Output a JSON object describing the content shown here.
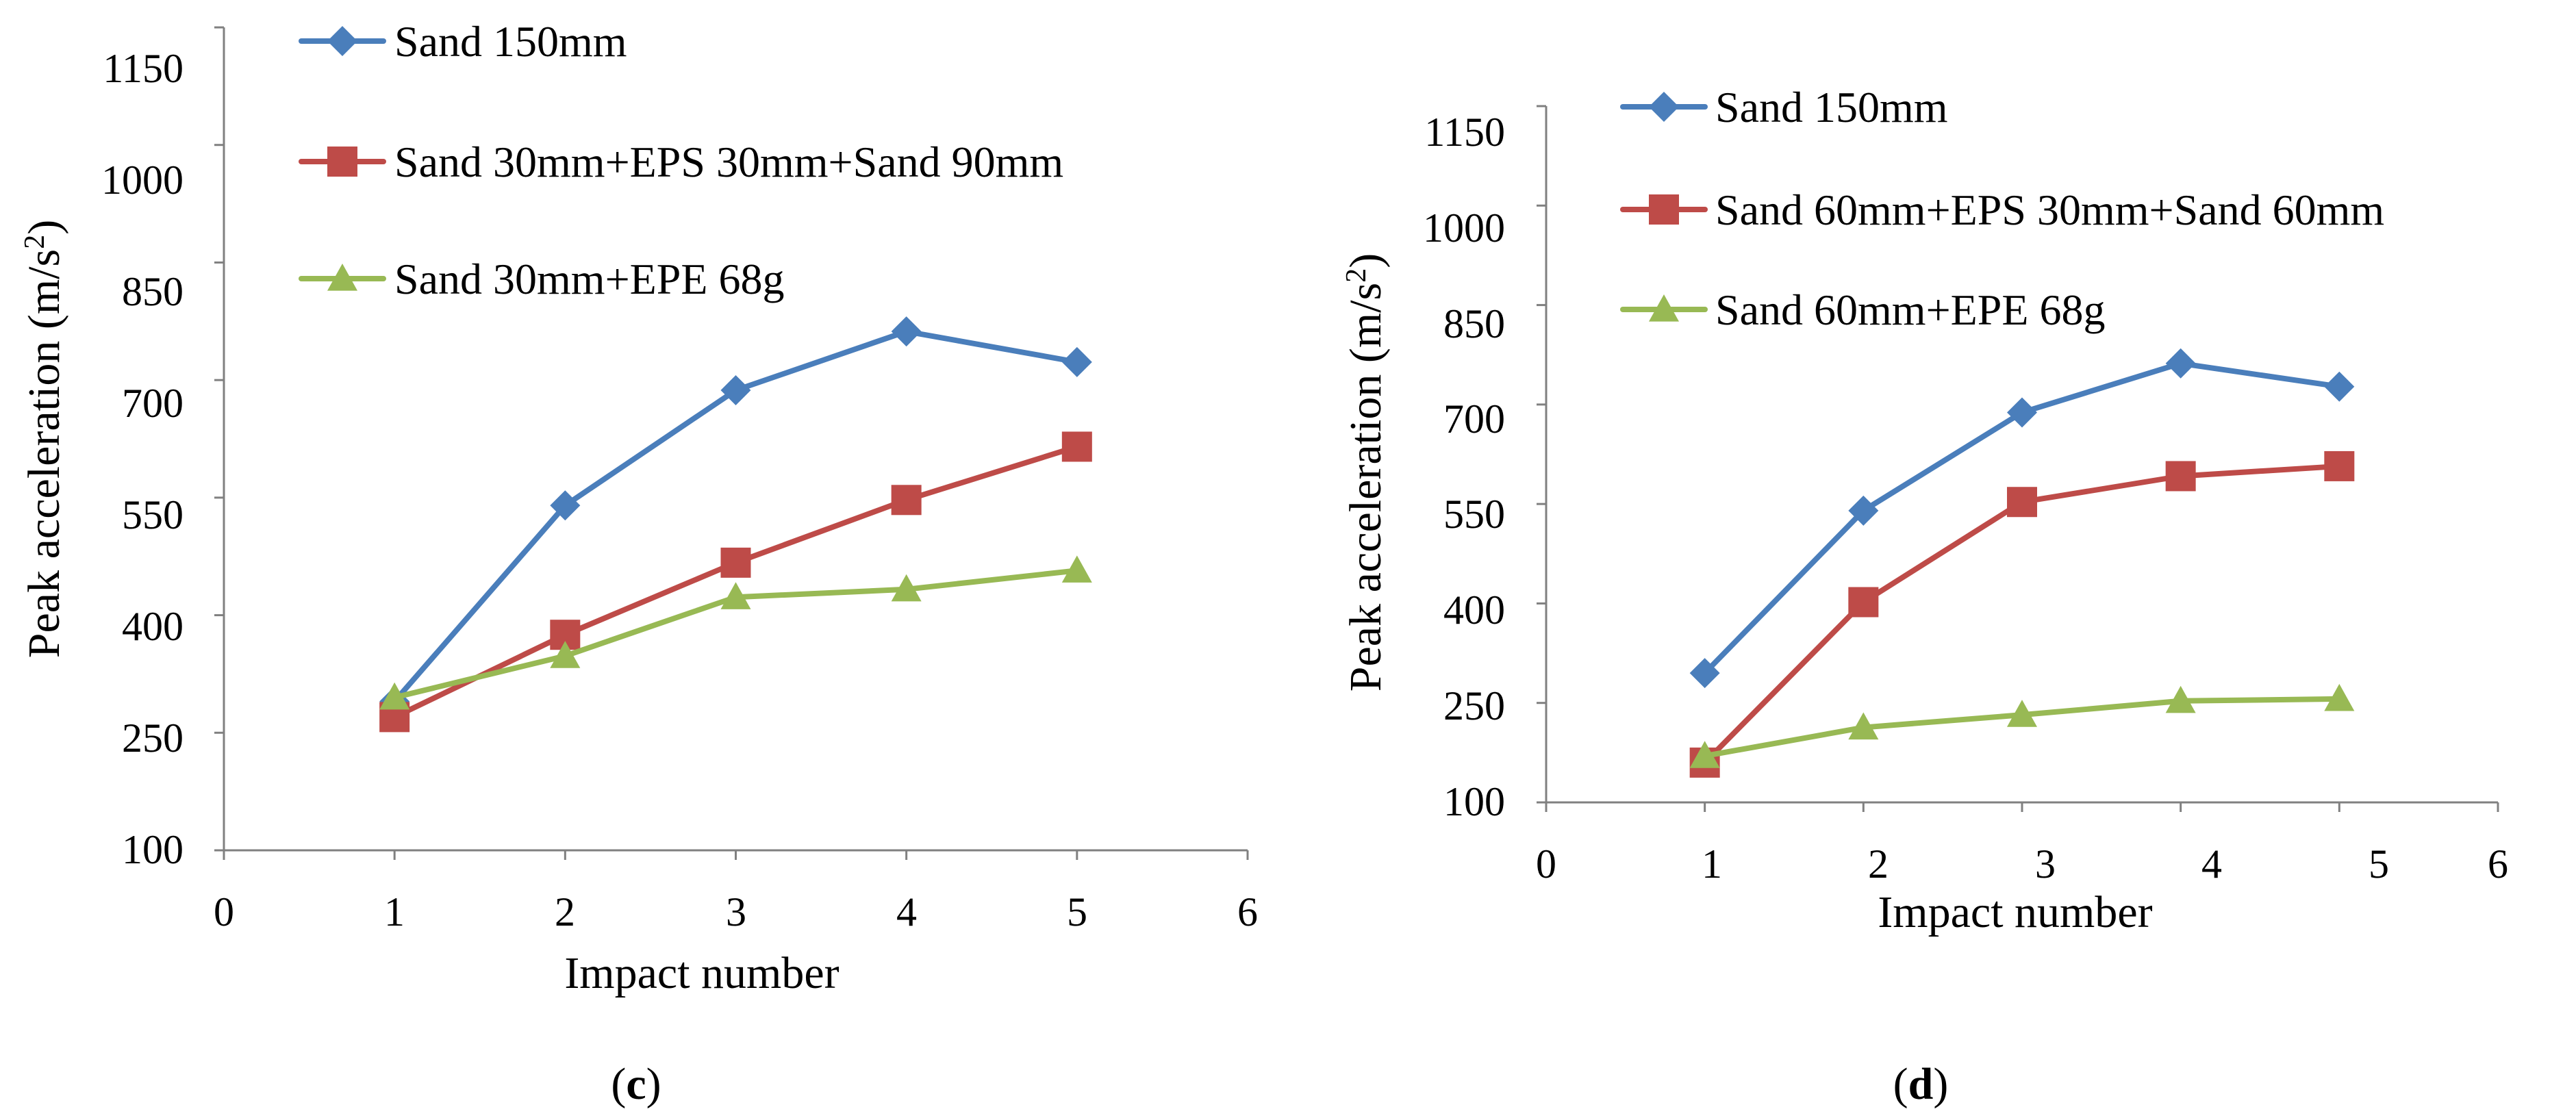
{
  "colors": {
    "blue": "#4a7ebb",
    "red": "#be4b48",
    "green": "#98b954"
  },
  "chart_data": [
    {
      "type": "line",
      "panel_label": "c",
      "xlabel": "Impact number",
      "ylabel": "Peak acceleration",
      "ylabel_unit": "m/s",
      "ylabel_unit_sup": "2",
      "xlim": [
        0,
        6
      ],
      "ylim": [
        100,
        1150
      ],
      "xticks": [
        "0",
        "1",
        "2",
        "3",
        "4",
        "5",
        "6"
      ],
      "yticks": [
        "100",
        "250",
        "400",
        "550",
        "700",
        "850",
        "1000",
        "1150"
      ],
      "grid": false,
      "legend_position": "top",
      "series": [
        {
          "name": "Sand 150mm",
          "color_key": "blue",
          "marker": "diamond-marker",
          "x": [
            1,
            2,
            3,
            4,
            5
          ],
          "values": [
            290,
            540,
            687,
            762,
            723
          ]
        },
        {
          "name": "Sand 30mm+EPS 30mm+Sand 90mm",
          "color_key": "red",
          "marker": "square-marker",
          "x": [
            1,
            2,
            3,
            4,
            5
          ],
          "values": [
            270,
            375,
            467,
            547,
            615
          ]
        },
        {
          "name": "Sand 30mm+EPE 68g",
          "color_key": "green",
          "marker": "triangle-marker",
          "x": [
            1,
            2,
            3,
            4,
            5
          ],
          "values": [
            295,
            348,
            423,
            433,
            457
          ]
        }
      ]
    },
    {
      "type": "line",
      "panel_label": "d",
      "xlabel": "Impact number",
      "ylabel": "Peak acceleration",
      "ylabel_unit": "m/s",
      "ylabel_unit_sup": "2",
      "xlim": [
        0,
        6
      ],
      "ylim": [
        100,
        1150
      ],
      "xticks": [
        "0",
        "1",
        "2",
        "3",
        "4",
        "5",
        "6"
      ],
      "yticks": [
        "100",
        "250",
        "400",
        "550",
        "700",
        "850",
        "1000",
        "1150"
      ],
      "grid": false,
      "legend_position": "top",
      "series": [
        {
          "name": "Sand 150mm",
          "color_key": "blue",
          "marker": "diamond-marker",
          "x": [
            1,
            2,
            3,
            4,
            5
          ],
          "values": [
            295,
            540,
            688,
            762,
            727
          ]
        },
        {
          "name": "Sand 60mm+EPS 30mm+Sand 60mm",
          "color_key": "red",
          "marker": "square-marker",
          "x": [
            1,
            2,
            3,
            4,
            5
          ],
          "values": [
            160,
            402,
            553,
            592,
            607
          ]
        },
        {
          "name": "Sand 60mm+EPE 68g",
          "color_key": "green",
          "marker": "triangle-marker",
          "x": [
            1,
            2,
            3,
            4,
            5
          ],
          "values": [
            170,
            213,
            232,
            253,
            256
          ]
        }
      ]
    }
  ]
}
